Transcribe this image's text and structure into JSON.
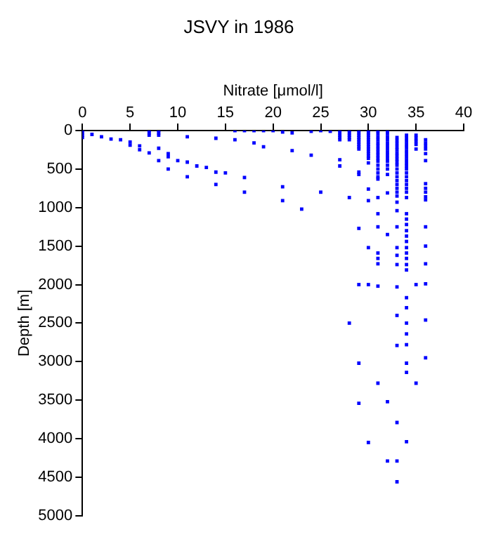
{
  "chart_data": {
    "type": "scatter",
    "title": "JSVY in 1986",
    "xlabel": "Nitrate [μmol/l]",
    "ylabel": "Depth [m]",
    "xlim": [
      0,
      40
    ],
    "xticks": [
      0,
      5,
      10,
      15,
      20,
      25,
      30,
      35,
      40
    ],
    "ylim": [
      5000,
      0
    ],
    "yticks": [
      0,
      500,
      1000,
      1500,
      2000,
      2500,
      3000,
      3500,
      4000,
      4500,
      5000
    ],
    "grid": false,
    "legend": false,
    "marker": "square",
    "series": [
      {
        "color": "#0000ff",
        "x": [
          0,
          0,
          0,
          0,
          1,
          2,
          3,
          4,
          5,
          5,
          6,
          6,
          7,
          7,
          7,
          7,
          8,
          8,
          8,
          8,
          8,
          9,
          9,
          9,
          10,
          11,
          11,
          11,
          12,
          13,
          14,
          14,
          14,
          15,
          16,
          16,
          17,
          17,
          17,
          18,
          18,
          19,
          19,
          20,
          21,
          21,
          21,
          22,
          22,
          23,
          24,
          24,
          25,
          25,
          26,
          27,
          27,
          27,
          27,
          27,
          27,
          27,
          28,
          28,
          28,
          28,
          28,
          28,
          28,
          29,
          29,
          29,
          29,
          29,
          29,
          29,
          29,
          29,
          29,
          29,
          29,
          29,
          29,
          29,
          30,
          30,
          30,
          30,
          30,
          30,
          30,
          30,
          30,
          30,
          30,
          30,
          30,
          30,
          30,
          30,
          30,
          30,
          30,
          31,
          31,
          31,
          31,
          31,
          31,
          31,
          31,
          31,
          31,
          31,
          31,
          31,
          31,
          31,
          31,
          31,
          31,
          31,
          31,
          31,
          31,
          31,
          31,
          32,
          32,
          32,
          32,
          32,
          32,
          32,
          32,
          32,
          32,
          32,
          32,
          32,
          32,
          32,
          32,
          32,
          32,
          33,
          33,
          33,
          33,
          33,
          33,
          33,
          33,
          33,
          33,
          33,
          33,
          33,
          33,
          33,
          33,
          33,
          33,
          33,
          33,
          33,
          33,
          33,
          33,
          33,
          33,
          33,
          33,
          33,
          33,
          34,
          34,
          34,
          34,
          34,
          34,
          34,
          34,
          34,
          34,
          34,
          34,
          34,
          34,
          34,
          34,
          34,
          34,
          34,
          34,
          34,
          34,
          34,
          34,
          34,
          34,
          34,
          34,
          34,
          34,
          34,
          34,
          34,
          34,
          34,
          34,
          34,
          34,
          35,
          35,
          35,
          35,
          35,
          35,
          35,
          36,
          36,
          36,
          36,
          36,
          36,
          36,
          36,
          36,
          36,
          36,
          36,
          36,
          36,
          36,
          36,
          36
        ],
        "values": [
          0,
          30,
          60,
          90,
          50,
          80,
          110,
          120,
          150,
          190,
          200,
          250,
          0,
          30,
          60,
          290,
          0,
          30,
          60,
          230,
          390,
          300,
          340,
          500,
          390,
          80,
          410,
          600,
          460,
          480,
          100,
          540,
          700,
          550,
          0,
          120,
          0,
          610,
          800,
          0,
          160,
          0,
          210,
          0,
          20,
          730,
          910,
          30,
          260,
          1020,
          10,
          320,
          0,
          800,
          10,
          0,
          30,
          60,
          90,
          120,
          380,
          460,
          0,
          30,
          60,
          90,
          120,
          870,
          2500,
          0,
          30,
          60,
          90,
          120,
          150,
          180,
          210,
          240,
          540,
          570,
          1270,
          2000,
          3020,
          3540,
          0,
          30,
          60,
          90,
          120,
          150,
          180,
          210,
          240,
          270,
          300,
          330,
          360,
          420,
          760,
          910,
          1520,
          2000,
          4050,
          0,
          40,
          80,
          120,
          160,
          200,
          240,
          280,
          320,
          360,
          400,
          450,
          500,
          550,
          600,
          630,
          870,
          1080,
          1250,
          1590,
          1660,
          1730,
          2020,
          3280,
          0,
          40,
          80,
          120,
          160,
          200,
          240,
          280,
          320,
          360,
          400,
          450,
          500,
          570,
          810,
          1350,
          3520,
          4290,
          90,
          130,
          170,
          210,
          250,
          290,
          330,
          370,
          410,
          450,
          500,
          550,
          600,
          650,
          700,
          750,
          800,
          850,
          930,
          1040,
          1250,
          1520,
          1620,
          1740,
          2030,
          2400,
          2790,
          3790,
          4290,
          4560,
          60,
          100,
          140,
          180,
          220,
          260,
          300,
          340,
          380,
          420,
          460,
          500,
          550,
          600,
          650,
          700,
          750,
          800,
          870,
          1080,
          1150,
          1220,
          1300,
          1370,
          1440,
          1520,
          1590,
          1660,
          1740,
          1810,
          2170,
          2300,
          2500,
          2640,
          2780,
          3020,
          3140,
          4040,
          60,
          100,
          140,
          180,
          240,
          2000,
          3280,
          120,
          160,
          200,
          240,
          300,
          390,
          690,
          750,
          800,
          860,
          900,
          1250,
          1500,
          1730,
          1990,
          2460,
          2950
        ]
      }
    ]
  }
}
